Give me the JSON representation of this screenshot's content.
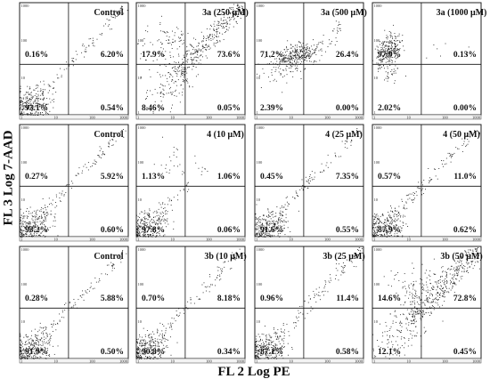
{
  "figure": {
    "ylabel": "FL 3 Log 7-AAD",
    "xlabel": "FL 2 Log PE",
    "tick_labels": [
      "1",
      "10",
      "100",
      "1000"
    ]
  },
  "chart_data": [
    {
      "type": "scatter",
      "title": "Control",
      "quadrants": {
        "upper_left": "0.16%",
        "upper_right": "6.20%",
        "lower_left": "93.1%",
        "lower_right": "0.54%"
      },
      "xlabel": "FL 2 Log PE",
      "ylabel": "FL 3 Log 7-AAD",
      "xscale": "log",
      "yscale": "log",
      "xlim": [
        1,
        1000
      ],
      "ylim": [
        1,
        1000
      ]
    },
    {
      "type": "scatter",
      "title": "3a (250 μM)",
      "quadrants": {
        "upper_left": "17.9%",
        "upper_right": "73.6%",
        "lower_left": "8.46%",
        "lower_right": "0.05%"
      },
      "xlabel": "FL 2 Log PE",
      "ylabel": "FL 3 Log 7-AAD",
      "xscale": "log",
      "yscale": "log",
      "xlim": [
        1,
        1000
      ],
      "ylim": [
        1,
        1000
      ]
    },
    {
      "type": "scatter",
      "title": "3a (500 μM)",
      "quadrants": {
        "upper_left": "71.2%",
        "upper_right": "26.4%",
        "lower_left": "2.39%",
        "lower_right": "0.00%"
      },
      "xlabel": "FL 2 Log PE",
      "ylabel": "FL 3 Log 7-AAD",
      "xscale": "log",
      "yscale": "log",
      "xlim": [
        1,
        1000
      ],
      "ylim": [
        1,
        1000
      ]
    },
    {
      "type": "scatter",
      "title": "3a (1000 μM)",
      "quadrants": {
        "upper_left": "97.9%",
        "upper_right": "0.13%",
        "lower_left": "2.02%",
        "lower_right": "0.00%"
      },
      "xlabel": "FL 2 Log PE",
      "ylabel": "FL 3 Log 7-AAD",
      "xscale": "log",
      "yscale": "log",
      "xlim": [
        1,
        1000
      ],
      "ylim": [
        1,
        1000
      ]
    },
    {
      "type": "scatter",
      "title": "Control",
      "quadrants": {
        "upper_left": "0.27%",
        "upper_right": "5.92%",
        "lower_left": "93.2%",
        "lower_right": "0.60%"
      },
      "xlabel": "FL 2 Log PE",
      "ylabel": "FL 3 Log 7-AAD",
      "xscale": "log",
      "yscale": "log",
      "xlim": [
        1,
        1000
      ],
      "ylim": [
        1,
        1000
      ]
    },
    {
      "type": "scatter",
      "title": "4 (10 μM)",
      "quadrants": {
        "upper_left": "1.13%",
        "upper_right": "1.06%",
        "lower_left": "97.8%",
        "lower_right": "0.06%"
      },
      "xlabel": "FL 2 Log PE",
      "ylabel": "FL 3 Log 7-AAD",
      "xscale": "log",
      "yscale": "log",
      "xlim": [
        1,
        1000
      ],
      "ylim": [
        1,
        1000
      ]
    },
    {
      "type": "scatter",
      "title": "4 (25 μM)",
      "quadrants": {
        "upper_left": "0.45%",
        "upper_right": "7.35%",
        "lower_left": "91.6%",
        "lower_right": "0.55%"
      },
      "xlabel": "FL 2 Log PE",
      "ylabel": "FL 3 Log 7-AAD",
      "xscale": "log",
      "yscale": "log",
      "xlim": [
        1,
        1000
      ],
      "ylim": [
        1,
        1000
      ]
    },
    {
      "type": "scatter",
      "title": "4 (50 μM)",
      "quadrants": {
        "upper_left": "0.57%",
        "upper_right": "11.0%",
        "lower_left": "87.9%",
        "lower_right": "0.62%"
      },
      "xlabel": "FL 2 Log PE",
      "ylabel": "FL 3 Log 7-AAD",
      "xscale": "log",
      "yscale": "log",
      "xlim": [
        1,
        1000
      ],
      "ylim": [
        1,
        1000
      ]
    },
    {
      "type": "scatter",
      "title": "Control",
      "quadrants": {
        "upper_left": "0.28%",
        "upper_right": "5.88%",
        "lower_left": "91.9%",
        "lower_right": "0.50%"
      },
      "xlabel": "FL 2 Log PE",
      "ylabel": "FL 3 Log 7-AAD",
      "xscale": "log",
      "yscale": "log",
      "xlim": [
        1,
        1000
      ],
      "ylim": [
        1,
        1000
      ]
    },
    {
      "type": "scatter",
      "title": "3b (10 μM)",
      "quadrants": {
        "upper_left": "0.70%",
        "upper_right": "8.18%",
        "lower_left": "90.8%",
        "lower_right": "0.34%"
      },
      "xlabel": "FL 2 Log PE",
      "ylabel": "FL 3 Log 7-AAD",
      "xscale": "log",
      "yscale": "log",
      "xlim": [
        1,
        1000
      ],
      "ylim": [
        1,
        1000
      ]
    },
    {
      "type": "scatter",
      "title": "3b (25 μM)",
      "quadrants": {
        "upper_left": "0.96%",
        "upper_right": "11.4%",
        "lower_left": "87.1%",
        "lower_right": "0.58%"
      },
      "xlabel": "FL 2 Log PE",
      "ylabel": "FL 3 Log 7-AAD",
      "xscale": "log",
      "yscale": "log",
      "xlim": [
        1,
        1000
      ],
      "ylim": [
        1,
        1000
      ]
    },
    {
      "type": "scatter",
      "title": "3b (50 μM)",
      "quadrants": {
        "upper_left": "14.6%",
        "upper_right": "72.8%",
        "lower_left": "12.1%",
        "lower_right": "0.45%"
      },
      "xlabel": "FL 2 Log PE",
      "ylabel": "FL 3 Log 7-AAD",
      "xscale": "log",
      "yscale": "log",
      "xlim": [
        1,
        1000
      ],
      "ylim": [
        1,
        1000
      ]
    }
  ]
}
